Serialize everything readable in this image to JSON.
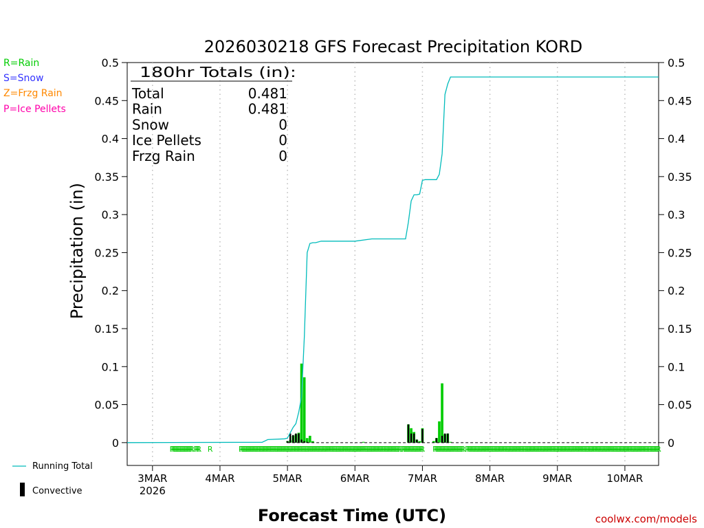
{
  "chart_data": {
    "type": "bar",
    "title": "2026030218 GFS Forecast Precipitation KORD",
    "xlabel": "Forecast Time (UTC)",
    "ylabel": "Precipitation (in)",
    "ylim": [
      -0.03,
      0.5
    ],
    "xlim_hours": [
      -9,
      180
    ],
    "grid": "vertical dotted at day boundaries",
    "yticks": [
      0,
      0.05,
      0.1,
      0.15,
      0.2,
      0.25,
      0.3,
      0.35,
      0.4,
      0.45,
      0.5
    ],
    "ytick_labels": [
      "0",
      "0.05",
      "0.1",
      "0.15",
      "0.2",
      "0.25",
      "0.3",
      "0.35",
      "0.4",
      "0.45",
      "0.5"
    ],
    "xticks": [
      {
        "hour": 0,
        "label": "3MAR",
        "sub": "2026"
      },
      {
        "hour": 24,
        "label": "4MAR",
        "sub": ""
      },
      {
        "hour": 48,
        "label": "5MAR",
        "sub": ""
      },
      {
        "hour": 72,
        "label": "6MAR",
        "sub": ""
      },
      {
        "hour": 96,
        "label": "7MAR",
        "sub": ""
      },
      {
        "hour": 120,
        "label": "8MAR",
        "sub": ""
      },
      {
        "hour": 144,
        "label": "9MAR",
        "sub": ""
      },
      {
        "hour": 168,
        "label": "10MAR",
        "sub": ""
      }
    ],
    "colors": {
      "rain": "#00cc00",
      "snow": "#3333ff",
      "frzg": "#ff8800",
      "ice": "#ff00aa",
      "running": "#00bbbb",
      "convective": "#000000"
    },
    "legend_ptype": [
      {
        "text": "R=Rain",
        "color": "#00cc00"
      },
      {
        "text": "S=Snow",
        "color": "#3333ff"
      },
      {
        "text": "Z=Frzg Rain",
        "color": "#ff8800"
      },
      {
        "text": "P=Ice Pellets",
        "color": "#ff00aa"
      }
    ],
    "legend_series": [
      {
        "text": "Running Total"
      },
      {
        "text": "Convective"
      }
    ],
    "totals": {
      "header": "180hr Totals (in):",
      "rows": [
        {
          "label": "Total",
          "value": "0.481"
        },
        {
          "label": "Rain",
          "value": "0.481"
        },
        {
          "label": "Snow",
          "value": "0"
        },
        {
          "label": "Ice Pellets",
          "value": "0"
        },
        {
          "label": "Frzg Rain",
          "value": "0"
        }
      ]
    },
    "running_total": {
      "hours": [
        -9,
        39,
        41,
        47,
        48,
        50,
        51,
        52,
        53,
        54,
        55,
        56,
        57,
        58,
        60,
        63,
        66,
        72,
        78,
        80,
        90,
        91,
        92,
        93,
        94,
        95,
        96,
        97,
        98,
        99,
        100,
        101,
        102,
        103,
        104,
        105,
        106,
        107,
        108,
        109,
        110,
        112,
        114,
        120,
        180
      ],
      "values": [
        0,
        0.0005,
        0.004,
        0.005,
        0.006,
        0.02,
        0.025,
        0.04,
        0.06,
        0.14,
        0.25,
        0.262,
        0.263,
        0.263,
        0.265,
        0.265,
        0.265,
        0.265,
        0.268,
        0.268,
        0.268,
        0.29,
        0.318,
        0.326,
        0.326,
        0.327,
        0.345,
        0.346,
        0.346,
        0.346,
        0.346,
        0.346,
        0.353,
        0.38,
        0.458,
        0.472,
        0.481,
        0.481,
        0.481,
        0.481,
        0.481,
        0.481,
        0.481,
        0.481,
        0.481
      ]
    },
    "rain_bars": {
      "hours": [
        48,
        49,
        50,
        51,
        52,
        53,
        54,
        55,
        56,
        57,
        75,
        91,
        92,
        93,
        94,
        95,
        96,
        100,
        101,
        102,
        103,
        104,
        105,
        106
      ],
      "values": [
        0.002,
        0.003,
        0.009,
        0.011,
        0.013,
        0.104,
        0.086,
        0.006,
        0.009,
        0.002,
        0.001,
        0.024,
        0.019,
        0.014,
        0.004,
        0.002,
        0.019,
        0.002,
        0.006,
        0.028,
        0.078,
        0.011,
        0.012,
        0.001
      ]
    },
    "convective_bars": {
      "hours": [
        48,
        49,
        50,
        51,
        52,
        53,
        54,
        55,
        91,
        92,
        93,
        94,
        96,
        101,
        103,
        104,
        105
      ],
      "values": [
        0.002,
        0.012,
        0.01,
        0.012,
        0.012,
        0.004,
        0.002,
        0.001,
        0.024,
        0.012,
        0.012,
        0.004,
        0.018,
        0.006,
        0.009,
        0.012,
        0.012
      ]
    },
    "ptype_marks": {
      "letter": "R",
      "hours": [
        7,
        7.5,
        8,
        8.5,
        9,
        9.5,
        10,
        10.5,
        11,
        11.5,
        12,
        12.5,
        13,
        13.5,
        14,
        15.5,
        16,
        16.5,
        20.5,
        31.5,
        32,
        32.5,
        33,
        33.5,
        34,
        34.5,
        35,
        35.5,
        36,
        36.5,
        37,
        37.5,
        38,
        38.5,
        39,
        39.5,
        40,
        40.5,
        41,
        41.5,
        42,
        42.5,
        43,
        43.5,
        44,
        44.5,
        45,
        45.5,
        46,
        46.5,
        47,
        47.5,
        48,
        48.5,
        49,
        49.5,
        50,
        50.5,
        51,
        51.5,
        52,
        52.5,
        53,
        53.5,
        54,
        54.5,
        55,
        55.5,
        56,
        56.5,
        57,
        57.5,
        58,
        58.5,
        59,
        59.5,
        60,
        60.5,
        61,
        61.5,
        62,
        62.5,
        63,
        63.5,
        64,
        64.5,
        65,
        65.5,
        66,
        66.5,
        67,
        67.5,
        68,
        68.5,
        69,
        69.5,
        70,
        70.5,
        71,
        71.5,
        72,
        72.5,
        73,
        73.5,
        74,
        74.5,
        75,
        75.5,
        76,
        76.5,
        77,
        77.5,
        78,
        78.5,
        79,
        79.5,
        80,
        80.5,
        81,
        81.5,
        82,
        82.5,
        83,
        83.5,
        84,
        84.5,
        85,
        85.5,
        86,
        86.5,
        87,
        87.5,
        88,
        89,
        89.5,
        90,
        90.5,
        91,
        91.5,
        92,
        92.5,
        93,
        93.5,
        94,
        94.5,
        95,
        95.5,
        96,
        100.5,
        101,
        101.5,
        102,
        102.5,
        103,
        103.5,
        104,
        104.5,
        105,
        105.5,
        106,
        106.5,
        107,
        107.5,
        108,
        108.5,
        109,
        109.5,
        110,
        110.5,
        112,
        112.5,
        113,
        113.5,
        114,
        114.5,
        115,
        115.5,
        116,
        116.5,
        117,
        117.5,
        118,
        118.5,
        119,
        119.5,
        120,
        120.5,
        121,
        121.5,
        122,
        122.5,
        123,
        123.5,
        124,
        124.5,
        125,
        125.5,
        126,
        126.5,
        127,
        127.5,
        128,
        128.5,
        129,
        129.5,
        130,
        130.5,
        131,
        131.5,
        132,
        132.5,
        133,
        133.5,
        134,
        134.5,
        135,
        135.5,
        136,
        136.5,
        137,
        137.5,
        138,
        138.5,
        139,
        139.5,
        140,
        140.5,
        141,
        141.5,
        142,
        142.5,
        143,
        143.5,
        144,
        144.5,
        145,
        145.5,
        146,
        146.5,
        147,
        147.5,
        148,
        148.5,
        149,
        149.5,
        150,
        150.5,
        151,
        151.5,
        152,
        152.5,
        153,
        153.5,
        154,
        154.5,
        155,
        155.5,
        156,
        156.5,
        157,
        157.5,
        158,
        158.5,
        159,
        159.5,
        160,
        160.5,
        161,
        161.5,
        162,
        162.5,
        163,
        163.5,
        164,
        164.5,
        165,
        165.5,
        166,
        166.5,
        167,
        167.5,
        168,
        168.5,
        169,
        169.5,
        170,
        170.5,
        171,
        171.5,
        172,
        172.5,
        173,
        173.5,
        174,
        174.5,
        175,
        175.5,
        176,
        176.5,
        177,
        177.5,
        178,
        178.5,
        179,
        179.5,
        180
      ]
    }
  },
  "credit": "coolwx.com/models"
}
